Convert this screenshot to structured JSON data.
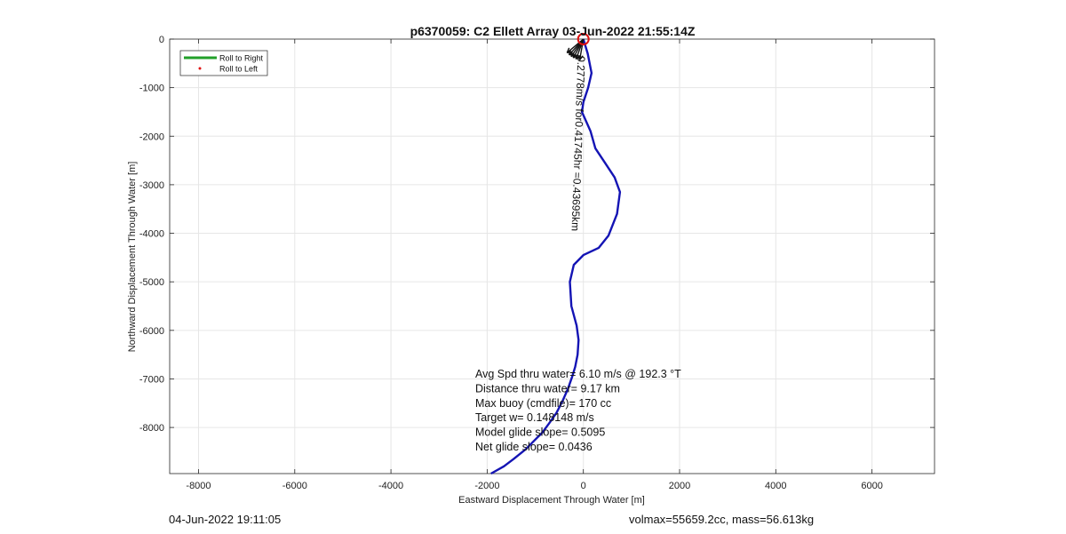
{
  "chart_data": {
    "type": "line",
    "title": "p6370059: C2 Ellett Array 03-Jun-2022 21:55:14Z",
    "xlabel": "Eastward Displacement Through Water [m]",
    "ylabel": "Northward Displacement Through Water [m]",
    "xlim": [
      -8600,
      7300
    ],
    "ylim": [
      -8950,
      0
    ],
    "xticks": [
      -8000,
      -6000,
      -4000,
      -2000,
      0,
      2000,
      4000,
      6000
    ],
    "xtick_labels": [
      "-8000",
      "-6000",
      "-4000",
      "-2000",
      "0",
      "2000",
      "4000",
      "6000"
    ],
    "yticks": [
      0,
      -1000,
      -2000,
      -3000,
      -4000,
      -5000,
      -6000,
      -7000,
      -8000
    ],
    "ytick_labels": [
      "0",
      "-1000",
      "-2000",
      "-3000",
      "-4000",
      "-5000",
      "-6000",
      "-7000",
      "-8000"
    ],
    "grid": true,
    "legend_position": "top-left",
    "legend": [
      {
        "label": "Roll to Right",
        "color": "#22a02a",
        "marker": "line"
      },
      {
        "label": "Roll to Left",
        "color": "#e01010",
        "marker": "dot"
      }
    ],
    "series": [
      {
        "color": "#1414b4",
        "x": [
          0,
          90,
          170,
          100,
          0,
          -30,
          150,
          250,
          450,
          650,
          760,
          700,
          520,
          320,
          0,
          -200,
          -280,
          -250,
          -140,
          -100,
          -120,
          -170,
          -230,
          -320,
          -430,
          -560,
          -700,
          -850,
          -1000,
          -1200,
          -1450,
          -1650,
          -1920
        ],
        "y": [
          0,
          -300,
          -700,
          -1000,
          -1300,
          -1500,
          -1900,
          -2250,
          -2550,
          -2850,
          -3150,
          -3600,
          -4050,
          -4300,
          -4450,
          -4650,
          -5000,
          -5500,
          -5900,
          -6200,
          -6500,
          -6750,
          -6950,
          -7200,
          -7450,
          -7700,
          -7900,
          -8100,
          -8250,
          -8450,
          -8650,
          -8800,
          -8950
        ]
      }
    ],
    "marker": {
      "label": "start",
      "x": 0,
      "y": 0,
      "color": "#e01010",
      "shape": "circle"
    },
    "current_arrows": {
      "color": "#111111",
      "angles": [
        200,
        208,
        215,
        222,
        230,
        190
      ]
    },
    "rotated_annotation": {
      "text": "0.2778m/s for0.41745hr =0.43695km",
      "x": -180,
      "y": -2150,
      "angle": 92
    },
    "annotations": [
      "Avg Spd thru water=  6.10 m/s @ 192.3 °T",
      "Distance thru water=  9.17 km",
      "Max buoy (cmdfile)= 170 cc",
      "Target w= 0.148148 m/s",
      "Model glide slope= 0.5095",
      "Net glide slope= 0.0436"
    ]
  },
  "footer": {
    "left": "04-Jun-2022 19:11:05",
    "right": "volmax=55659.2cc, mass=56.613kg"
  }
}
